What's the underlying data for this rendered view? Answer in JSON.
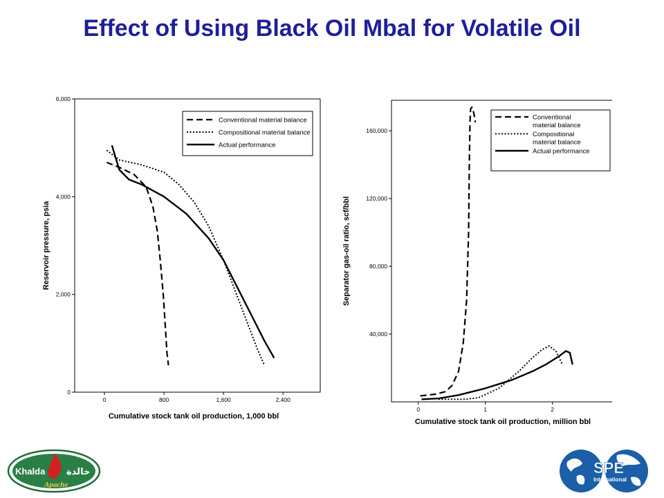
{
  "slide": {
    "title": "Effect of Using Black Oil Mbal for Volatile Oil"
  },
  "logos": {
    "khalda": {
      "text": "Khalda",
      "arabic": "خالدة",
      "partner": "Apache"
    },
    "spe": {
      "text": "SPE",
      "sub": "International"
    }
  },
  "chart_data": [
    {
      "type": "line",
      "title": "",
      "xlabel": "Cumulative stock tank oil production, 1,000 bbl",
      "ylabel": "Reservoir pressure, psia",
      "xlim": [
        -400,
        2900
      ],
      "ylim": [
        0,
        6000
      ],
      "xticks": [
        0,
        800,
        1600,
        2400
      ],
      "xtick_labels": [
        "0",
        "800",
        "1,600",
        "2,400"
      ],
      "yticks": [
        0,
        2000,
        4000,
        6000
      ],
      "ytick_labels": [
        "0",
        "2,000",
        "4,000",
        "6,000"
      ],
      "grid": false,
      "legend_position": "top-right",
      "series": [
        {
          "name": "Conventional material balance",
          "style": "dashed",
          "x": [
            30,
            200,
            400,
            560,
            650,
            710,
            750,
            790,
            820,
            840,
            860
          ],
          "y": [
            4700,
            4600,
            4450,
            4200,
            3800,
            3300,
            2700,
            2000,
            1300,
            800,
            550
          ]
        },
        {
          "name": "Compositional material balance",
          "style": "dotted",
          "x": [
            30,
            200,
            500,
            800,
            1000,
            1200,
            1400,
            1600,
            1800,
            1950,
            2050,
            2150
          ],
          "y": [
            4950,
            4750,
            4650,
            4500,
            4250,
            3900,
            3400,
            2700,
            1900,
            1300,
            900,
            550
          ]
        },
        {
          "name": "Actual performance",
          "style": "solid",
          "x": [
            100,
            200,
            330,
            500,
            800,
            1100,
            1400,
            1600,
            1800,
            2000,
            2150,
            2280
          ],
          "y": [
            5050,
            4550,
            4350,
            4250,
            4000,
            3650,
            3150,
            2700,
            2100,
            1500,
            1050,
            700
          ]
        }
      ]
    },
    {
      "type": "line",
      "title": "",
      "xlabel": "Cumulative stock tank oil production, million bbl",
      "ylabel": "Separator gas-oil ratio, scf/bbl",
      "xlim": [
        -0.4,
        2.9
      ],
      "ylim": [
        0,
        178000
      ],
      "xticks": [
        0,
        1,
        2
      ],
      "xtick_labels": [
        "0",
        "1",
        "2"
      ],
      "yticks": [
        40000,
        80000,
        120000,
        160000
      ],
      "ytick_labels": [
        "40,000",
        "80,000",
        "120,000",
        "160,000"
      ],
      "grid": false,
      "legend_position": "top-right",
      "series": [
        {
          "name": "Conventional material balance",
          "style": "dashed",
          "x": [
            0.03,
            0.25,
            0.4,
            0.5,
            0.6,
            0.67,
            0.72,
            0.75,
            0.76,
            0.77,
            0.78,
            0.8,
            0.83,
            0.85
          ],
          "y": [
            3500,
            4500,
            6000,
            9500,
            18000,
            35000,
            60000,
            100000,
            140000,
            165000,
            173000,
            174000,
            170000,
            165000
          ]
        },
        {
          "name": "Compositional material balance",
          "style": "dotted",
          "x": [
            0.3,
            0.7,
            0.9,
            1.2,
            1.5,
            1.7,
            1.85,
            1.95,
            2.05,
            2.15
          ],
          "y": [
            1500,
            1500,
            2500,
            8000,
            18000,
            26000,
            31000,
            33000,
            30000,
            22000
          ]
        },
        {
          "name": "Actual performance",
          "style": "solid",
          "x": [
            0.05,
            0.3,
            0.6,
            1.0,
            1.4,
            1.7,
            1.9,
            2.1,
            2.2,
            2.26,
            2.3
          ],
          "y": [
            1500,
            2000,
            4000,
            8000,
            13000,
            18000,
            22000,
            27000,
            30000,
            29000,
            22000
          ]
        }
      ]
    }
  ]
}
